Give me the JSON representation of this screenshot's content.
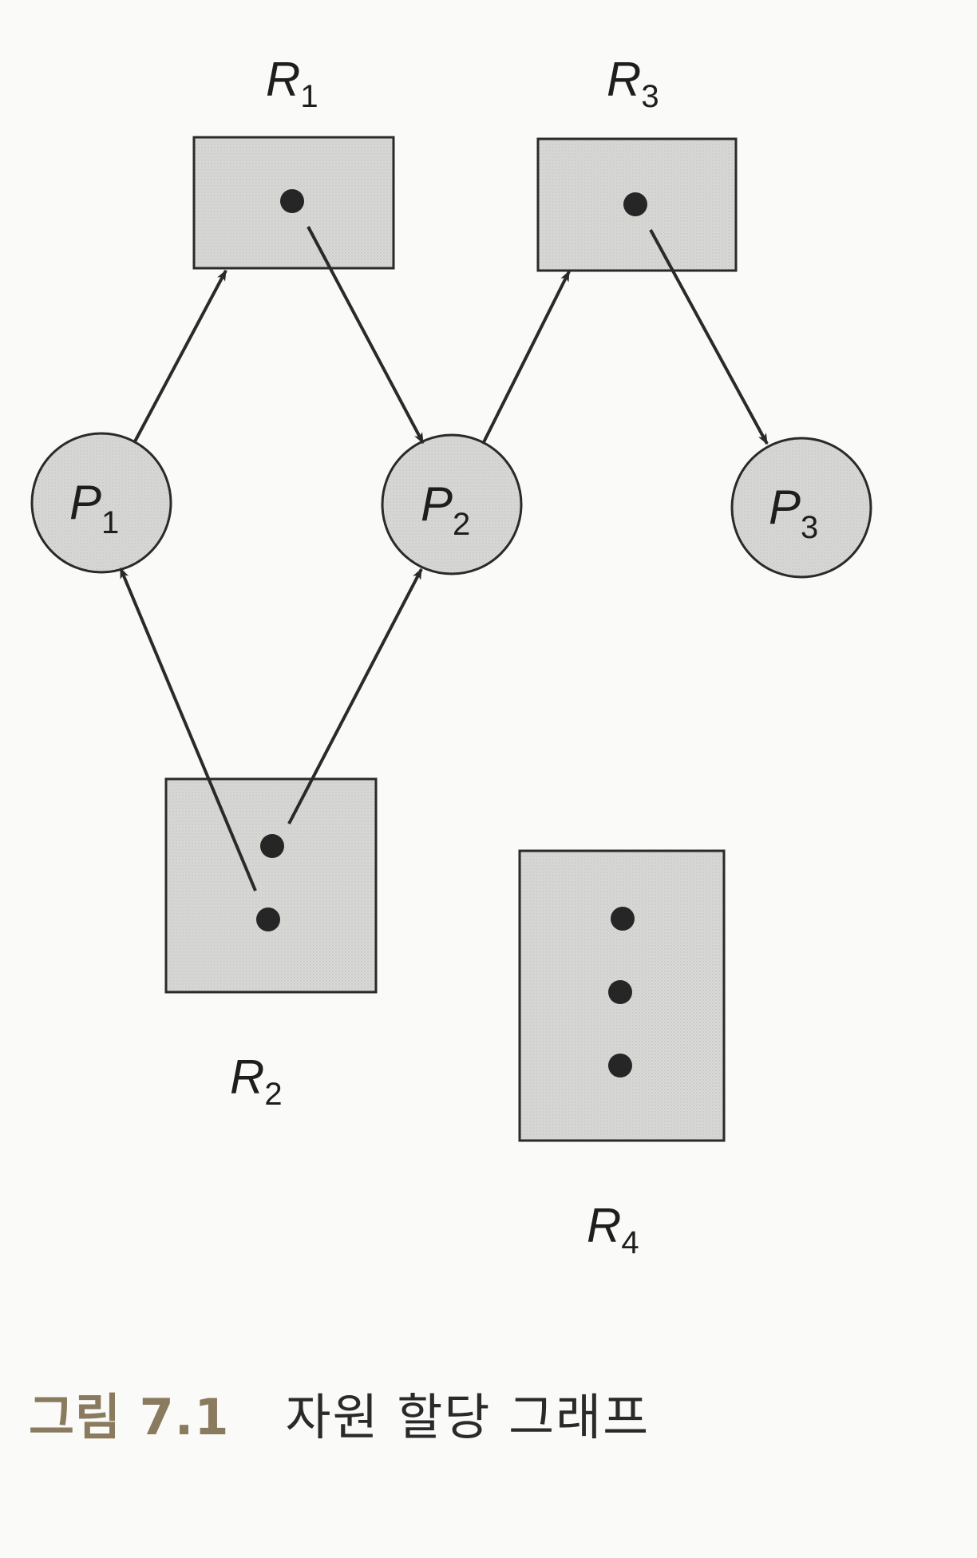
{
  "diagram": {
    "resources": [
      {
        "id": "r1",
        "letter": "R",
        "sub": "1",
        "instances": 1
      },
      {
        "id": "r3",
        "letter": "R",
        "sub": "3",
        "instances": 1
      },
      {
        "id": "r2",
        "letter": "R",
        "sub": "2",
        "instances": 2
      },
      {
        "id": "r4",
        "letter": "R",
        "sub": "4",
        "instances": 3
      }
    ],
    "processes": [
      {
        "id": "p1",
        "letter": "P",
        "sub": "1"
      },
      {
        "id": "p2",
        "letter": "P",
        "sub": "2"
      },
      {
        "id": "p3",
        "letter": "P",
        "sub": "3"
      }
    ],
    "edges": [
      {
        "from": "P1",
        "to": "R1",
        "kind": "request"
      },
      {
        "from": "R1",
        "to": "P2",
        "kind": "assignment"
      },
      {
        "from": "P2",
        "to": "R3",
        "kind": "request"
      },
      {
        "from": "R3",
        "to": "P3",
        "kind": "assignment"
      },
      {
        "from": "R2",
        "to": "P1",
        "kind": "assignment"
      },
      {
        "from": "R2",
        "to": "P2",
        "kind": "assignment"
      }
    ],
    "colors": {
      "fill": "#d9d9d7",
      "stroke": "#2a2a2a",
      "process_fill": "#d4d2cc"
    }
  },
  "caption": {
    "number": "그림 7.1",
    "title": "자원 할당 그래프"
  }
}
